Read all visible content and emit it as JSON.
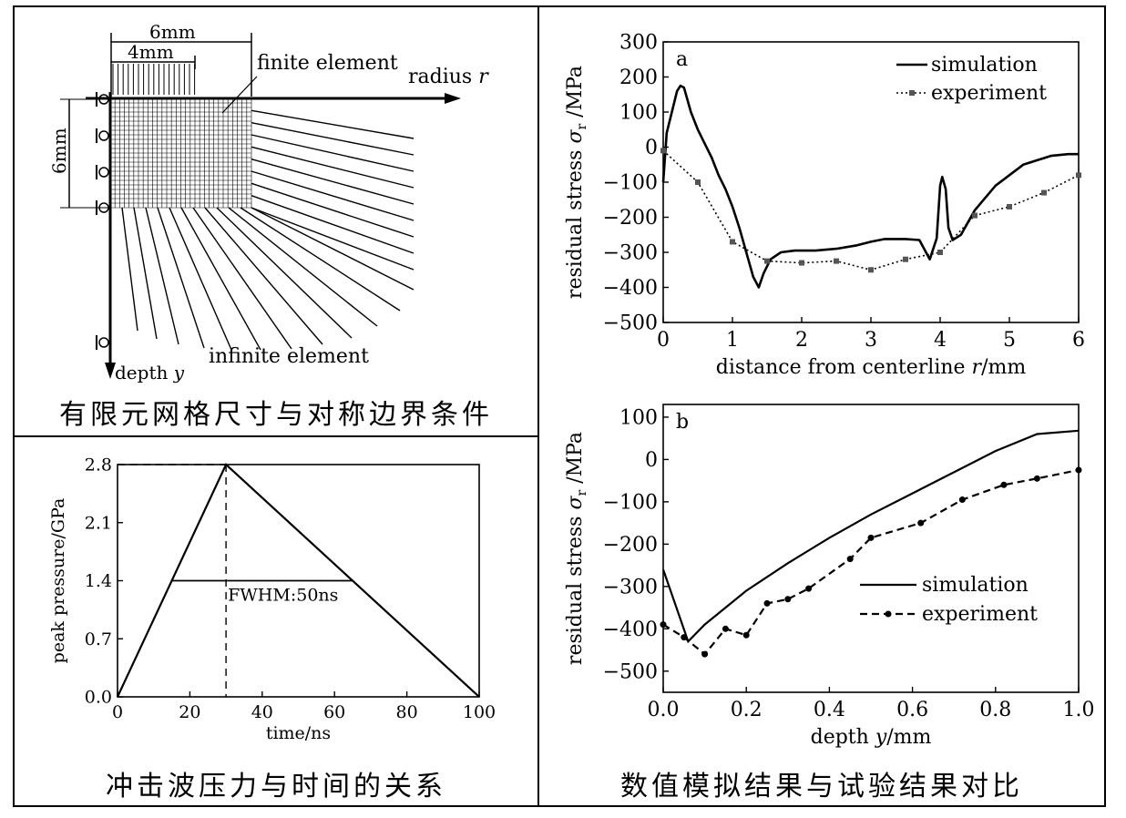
{
  "captions": {
    "mesh": "有限元网格尺寸与对称边界条件",
    "pressure": "冲击波压力与时间的关系",
    "compare": "数值模拟结果与试验结果对比"
  },
  "mesh": {
    "dim_6mm_top": "6mm",
    "dim_4mm": "4mm",
    "dim_6mm_side": "6mm",
    "finite_label": "finite element",
    "radius_label": "radius",
    "radius_var": "r",
    "depth_label": "depth",
    "depth_var": "y",
    "infinite_label": "infinite element"
  },
  "chart_data": [
    {
      "id": "pressure",
      "type": "line",
      "xlabel": "time/ns",
      "ylabel": "peak pressure/GPa",
      "xlim": [
        0,
        100
      ],
      "ylim": [
        0,
        2.8
      ],
      "xticks": [
        "0",
        "20",
        "40",
        "60",
        "80",
        "100"
      ],
      "yticks": [
        "0.0",
        "0.7",
        "1.4",
        "2.1",
        "2.8"
      ],
      "x": [
        0,
        30,
        100
      ],
      "y": [
        0,
        2.8,
        0
      ],
      "annotation": "FWHM:50ns",
      "fwhm": {
        "x_start": 15,
        "x_end": 65,
        "y": 1.4
      },
      "peak": {
        "x": 30,
        "y": 2.8
      }
    },
    {
      "id": "a",
      "type": "line",
      "panel_label": "a",
      "xlabel": "distance from centerline",
      "xlabel_var": "r",
      "xlabel_unit": "/mm",
      "ylabel": "residual stress",
      "ylabel_var": "σ",
      "ylabel_sub": "r",
      "ylabel_unit": " /MPa",
      "xlim": [
        0,
        6
      ],
      "ylim": [
        -500,
        300
      ],
      "xticks": [
        "0",
        "1",
        "2",
        "3",
        "4",
        "5",
        "6"
      ],
      "yticks": [
        "300",
        "200",
        "100",
        "0",
        "−100",
        "−200",
        "−300",
        "−400",
        "−500"
      ],
      "legend_position": "top-right",
      "series": [
        {
          "name": "simulation",
          "x": [
            0,
            0.05,
            0.1,
            0.2,
            0.25,
            0.3,
            0.4,
            0.5,
            0.6,
            0.7,
            0.8,
            0.9,
            1.0,
            1.1,
            1.2,
            1.3,
            1.38,
            1.45,
            1.55,
            1.7,
            1.9,
            2.0,
            2.2,
            2.5,
            2.8,
            3.0,
            3.2,
            3.5,
            3.7,
            3.85,
            3.95,
            4.0,
            4.03,
            4.08,
            4.12,
            4.18,
            4.3,
            4.5,
            4.8,
            5.2,
            5.6,
            5.85,
            6.0
          ],
          "y": [
            -100,
            40,
            80,
            160,
            175,
            170,
            100,
            50,
            10,
            -30,
            -80,
            -120,
            -170,
            -230,
            -300,
            -370,
            -400,
            -360,
            -320,
            -300,
            -295,
            -295,
            -295,
            -290,
            -280,
            -270,
            -262,
            -262,
            -265,
            -320,
            -260,
            -110,
            -85,
            -120,
            -230,
            -265,
            -250,
            -180,
            -110,
            -50,
            -25,
            -20,
            -20
          ]
        },
        {
          "name": "experiment",
          "x": [
            0,
            0.5,
            1.0,
            1.5,
            2.0,
            2.5,
            3.0,
            3.5,
            4.0,
            4.5,
            5.0,
            5.5,
            6.0
          ],
          "y": [
            -10,
            -100,
            -270,
            -325,
            -330,
            -325,
            -350,
            -320,
            -300,
            -195,
            -170,
            -130,
            -80
          ]
        }
      ]
    },
    {
      "id": "b",
      "type": "line",
      "panel_label": "b",
      "xlabel": "depth",
      "xlabel_var": "y",
      "xlabel_unit": "/mm",
      "ylabel": "residual stress",
      "ylabel_var": "σ",
      "ylabel_sub": "r",
      "ylabel_unit": " /MPa",
      "xlim": [
        0,
        1.0
      ],
      "ylim": [
        -550,
        130
      ],
      "xticks": [
        "0.0",
        "0.2",
        "0.4",
        "0.6",
        "0.8",
        "1.0"
      ],
      "yticks": [
        "100",
        "0",
        "−100",
        "−200",
        "−300",
        "−400",
        "−500"
      ],
      "ytick_values": [
        100,
        0,
        -100,
        -200,
        -300,
        -400,
        -500
      ],
      "legend_position": "bottom-right",
      "series": [
        {
          "name": "simulation",
          "x": [
            0,
            0.06,
            0.1,
            0.2,
            0.3,
            0.4,
            0.5,
            0.6,
            0.7,
            0.8,
            0.9,
            1.0
          ],
          "y": [
            -260,
            -430,
            -390,
            -310,
            -245,
            -185,
            -130,
            -80,
            -30,
            20,
            60,
            68
          ]
        },
        {
          "name": "experiment",
          "x": [
            0,
            0.05,
            0.1,
            0.15,
            0.2,
            0.25,
            0.3,
            0.35,
            0.45,
            0.5,
            0.62,
            0.72,
            0.82,
            0.9,
            1.0
          ],
          "y": [
            -390,
            -420,
            -460,
            -400,
            -415,
            -340,
            -330,
            -305,
            -235,
            -185,
            -150,
            -95,
            -60,
            -45,
            -25
          ]
        }
      ]
    }
  ]
}
